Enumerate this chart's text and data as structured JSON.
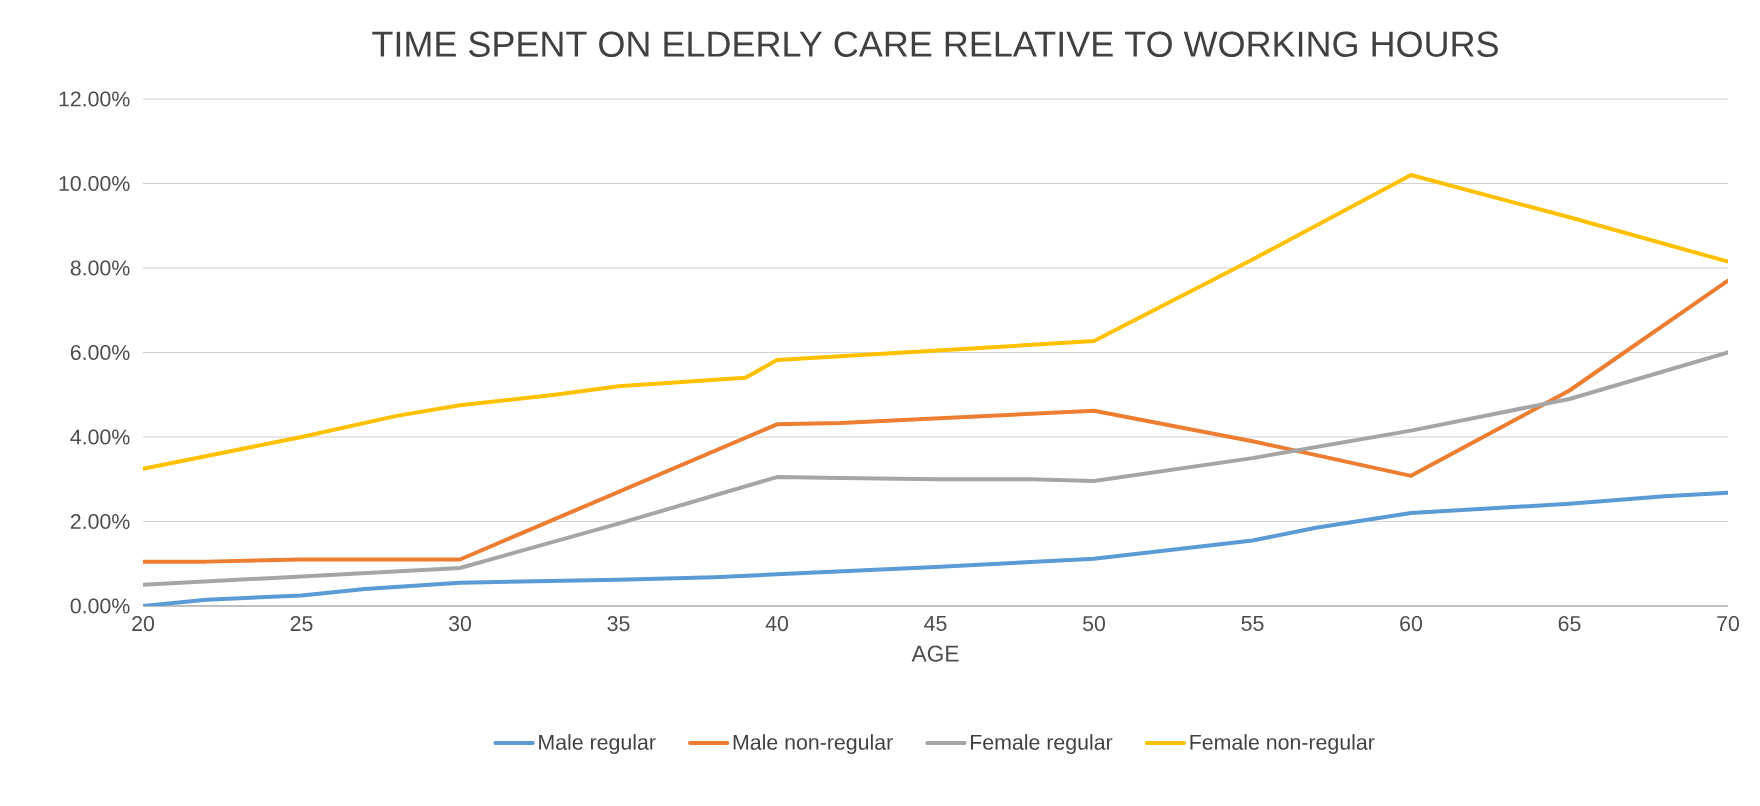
{
  "chart_data": {
    "type": "line",
    "title": "TIME SPENT ON ELDERLY CARE RELATIVE TO WORKING HOURS",
    "xlabel": "AGE",
    "xlim": [
      20,
      70
    ],
    "xticks": [
      20,
      25,
      30,
      35,
      40,
      45,
      50,
      55,
      60,
      65,
      70
    ],
    "ylim": [
      0,
      12
    ],
    "yticks": [
      {
        "value": 0,
        "label": "0.00%"
      },
      {
        "value": 2,
        "label": "2.00%"
      },
      {
        "value": 4,
        "label": "4.00%"
      },
      {
        "value": 6,
        "label": "6.00%"
      },
      {
        "value": 8,
        "label": "8.00%"
      },
      {
        "value": 10,
        "label": "10.00%"
      },
      {
        "value": 12,
        "label": "12.00%"
      }
    ],
    "grid": "y",
    "legend": "bottom",
    "marker": "none",
    "line_style": "solid",
    "series": [
      {
        "name": "Male regular",
        "color": "#5b9bd5",
        "x": [
          20,
          22,
          25,
          27,
          30,
          35,
          38,
          40,
          45,
          50,
          55,
          57,
          60,
          65,
          68,
          70
        ],
        "values": [
          0.0,
          0.15,
          0.25,
          0.4,
          0.55,
          0.62,
          0.68,
          0.75,
          0.92,
          1.12,
          1.55,
          1.85,
          2.2,
          2.42,
          2.6,
          2.68
        ]
      },
      {
        "name": "Male non-regular",
        "color": "#ed7d31",
        "x": [
          20,
          22,
          25,
          30,
          40,
          42,
          50,
          55,
          60,
          65,
          70
        ],
        "values": [
          1.05,
          1.05,
          1.1,
          1.1,
          4.3,
          4.33,
          4.62,
          3.9,
          3.08,
          5.1,
          7.7
        ]
      },
      {
        "name": "Female regular",
        "color": "#a5a5a5",
        "x": [
          20,
          25,
          30,
          35,
          40,
          42,
          45,
          48,
          50,
          55,
          60,
          65,
          70
        ],
        "values": [
          0.5,
          0.7,
          0.9,
          1.95,
          3.05,
          3.03,
          3.0,
          3.0,
          2.96,
          3.5,
          4.15,
          4.9,
          6.0
        ]
      },
      {
        "name": "Female non-regular",
        "color": "#ffc000",
        "x": [
          20,
          25,
          28,
          30,
          33,
          35,
          39,
          40,
          44,
          50,
          55,
          60,
          65,
          70
        ],
        "values": [
          3.25,
          4.0,
          4.5,
          4.75,
          5.0,
          5.2,
          5.4,
          5.82,
          6.0,
          6.27,
          8.2,
          10.2,
          9.2,
          8.15
        ]
      }
    ]
  }
}
